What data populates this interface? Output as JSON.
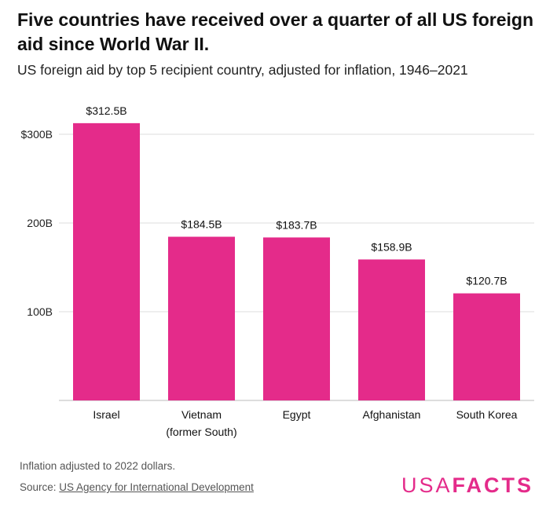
{
  "title": "Five countries have received over a quarter of all US foreign aid since World War II.",
  "subtitle": "US foreign aid by top 5 recipient country, adjusted for inflation, 1946–2021",
  "footnote": "Inflation adjusted to 2022 dollars.",
  "source": {
    "prefix": "Source: ",
    "link_text": "US Agency for International Development"
  },
  "logo": {
    "part1": "USA",
    "part2": "FACTS"
  },
  "colors": {
    "bar": "#e42b8a",
    "grid": "#dddddd",
    "axis": "#bbbbbb",
    "brand": "#e42b8a"
  },
  "chart_data": {
    "type": "bar",
    "title": "Five countries have received over a quarter of all US foreign aid since World War II.",
    "subtitle": "US foreign aid by top 5 recipient country, adjusted for inflation, 1946–2021",
    "xlabel": "",
    "ylabel": "",
    "categories": [
      [
        "Israel"
      ],
      [
        "Vietnam",
        "(former South)"
      ],
      [
        "Egypt"
      ],
      [
        "Afghanistan"
      ],
      [
        "South Korea"
      ]
    ],
    "values": [
      312.5,
      184.5,
      183.7,
      158.9,
      120.7
    ],
    "value_labels": [
      "$312.5B",
      "$184.5B",
      "$183.7B",
      "$158.9B",
      "$120.7B"
    ],
    "unit": "billion USD (2022 dollars)",
    "ylim": [
      0,
      330
    ],
    "yticks": [
      {
        "value": 100,
        "label": "100B"
      },
      {
        "value": 200,
        "label": "200B"
      },
      {
        "value": 300,
        "label": "$300B"
      }
    ],
    "grid": true,
    "legend": "none"
  }
}
